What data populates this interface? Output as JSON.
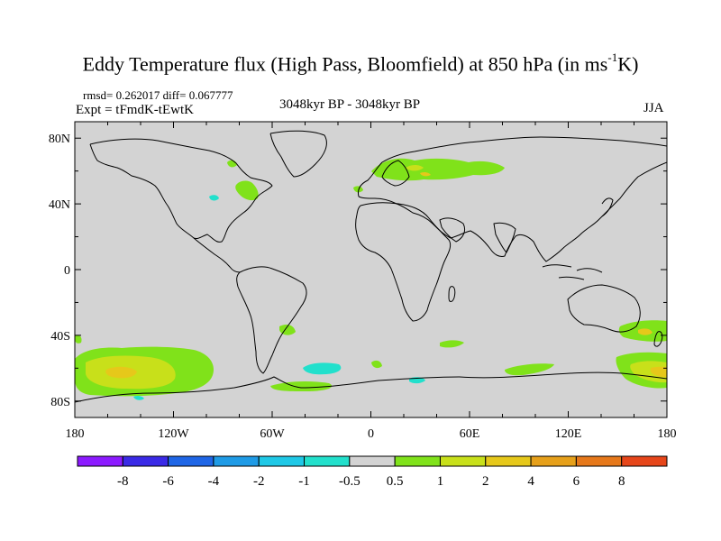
{
  "header": {
    "title_main": "Eddy Temperature flux (High Pass, Bloomfield) at 850 hPa (in ms",
    "title_sup": "-1",
    "title_end": "K)",
    "stats": "rmsd= 0.262017 diff= 0.067777",
    "expt": "Expt = tFmdK-tEwtK",
    "period": "3048kyr BP - 3048kyr BP",
    "season": "JJA"
  },
  "map": {
    "background_color": "#d3d3d3",
    "lat_ticks": [
      "80N",
      "40N",
      "0",
      "40S",
      "80S"
    ],
    "lon_ticks": [
      "180",
      "120W",
      "60W",
      "0",
      "60E",
      "120E",
      "180"
    ]
  },
  "legend": {
    "colors": [
      "#8c1aff",
      "#3a2ae6",
      "#1f66e6",
      "#1f9be6",
      "#1fc8e6",
      "#22e0cc",
      "#d3d3d3",
      "#80e21a",
      "#c8e01a",
      "#e6c81a",
      "#e6a01a",
      "#e6781a",
      "#e6461a"
    ],
    "labels": [
      "-8",
      "-6",
      "-4",
      "-2",
      "-1",
      "-0.5",
      "0.5",
      "1",
      "2",
      "4",
      "6",
      "8"
    ]
  }
}
